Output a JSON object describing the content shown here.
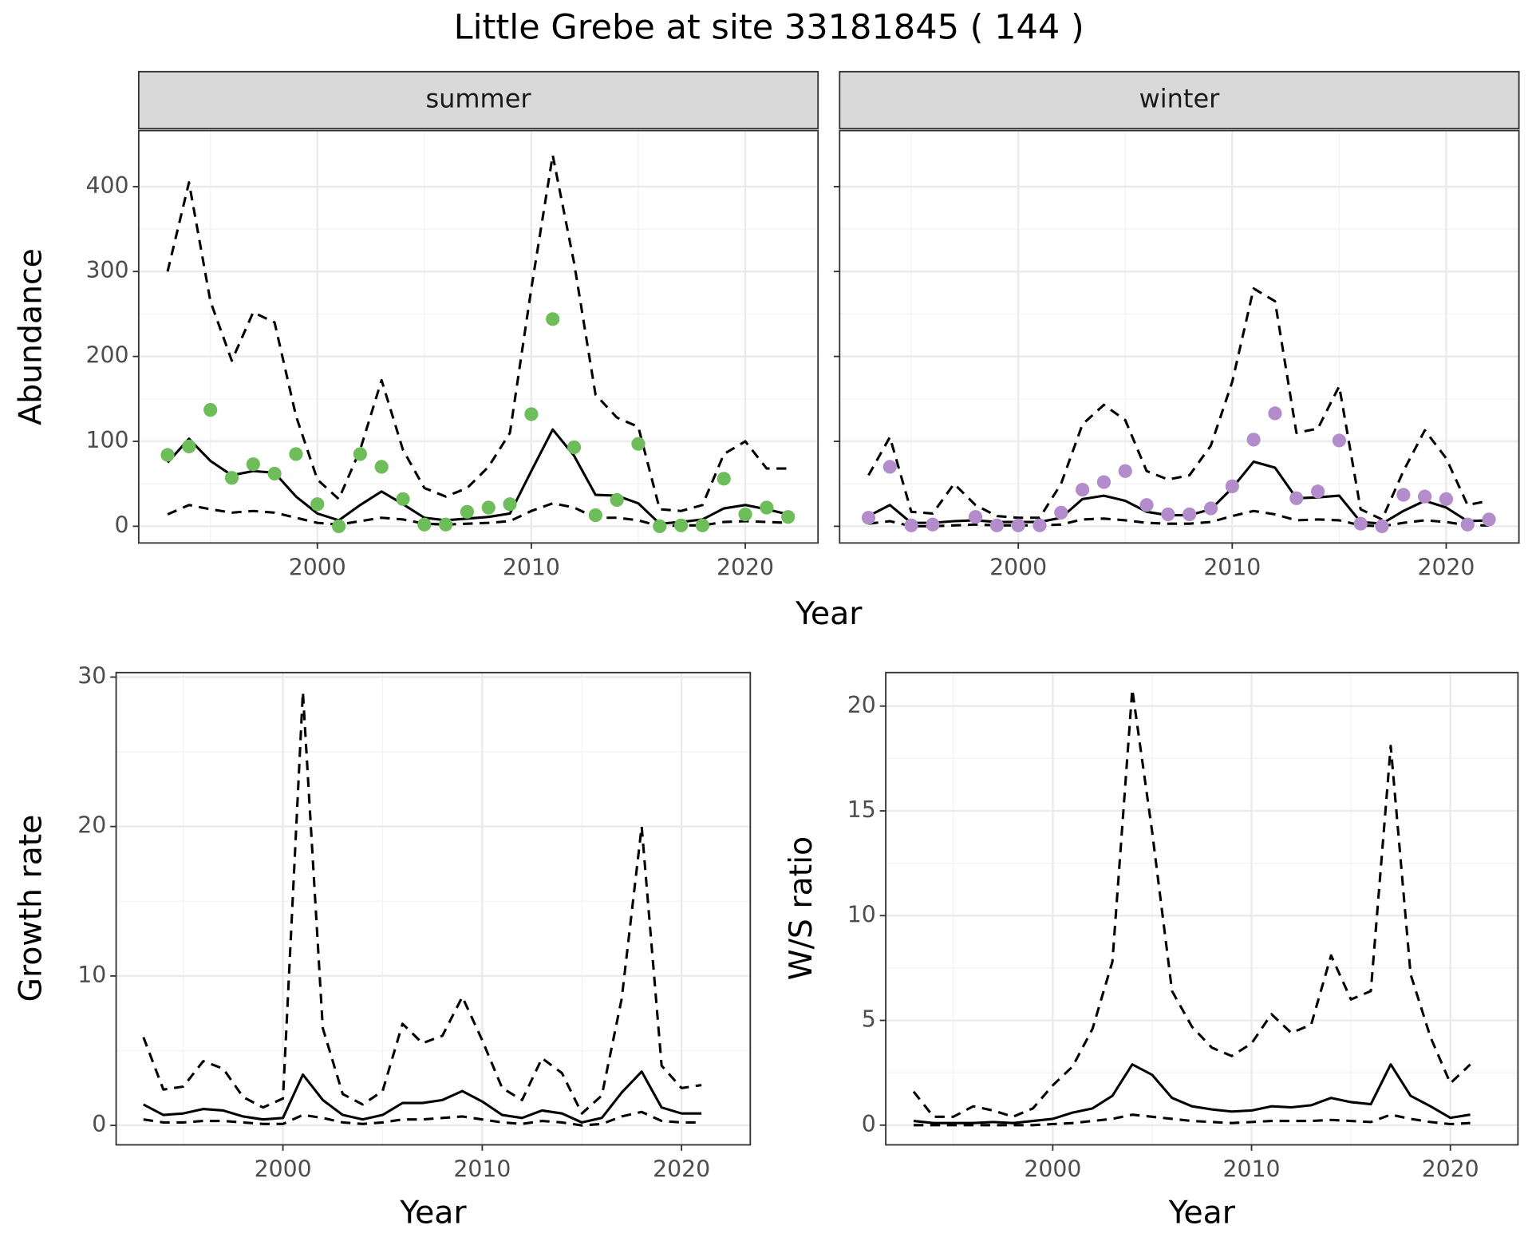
{
  "title": "Little Grebe at site 33181845 ( 144 )",
  "chart_data": [
    {
      "type": "line",
      "panel": "summer",
      "xlabel": "Year",
      "ylabel": "Abundance",
      "x": [
        1993,
        1994,
        1995,
        1996,
        1997,
        1998,
        1999,
        2000,
        2001,
        2002,
        2003,
        2004,
        2005,
        2006,
        2007,
        2008,
        2009,
        2010,
        2011,
        2012,
        2013,
        2014,
        2015,
        2016,
        2017,
        2018,
        2019,
        2020,
        2021,
        2022
      ],
      "xlim": [
        1991.65,
        2023.4
      ],
      "xticks": [
        2000,
        2010,
        2020
      ],
      "ylim": [
        -19.7,
        466
      ],
      "yticks": [
        0,
        100,
        200,
        300,
        400
      ],
      "ytick_labels": true,
      "grid": true,
      "series": [
        {
          "color": "#000000",
          "dash": true,
          "values": [
            300,
            405,
            265,
            195,
            252,
            240,
            130,
            55,
            32,
            90,
            172,
            90,
            45,
            35,
            45,
            70,
            110,
            280,
            437,
            310,
            155,
            128,
            117,
            20,
            18,
            25,
            85,
            100,
            68,
            68
          ]
        },
        {
          "color": "#000000",
          "dash": false,
          "values": [
            75,
            103,
            77,
            60,
            65,
            63,
            35,
            15,
            7,
            25,
            41,
            26,
            10,
            7,
            9,
            11,
            15,
            65,
            114,
            83,
            37,
            36,
            27,
            3,
            5,
            8,
            21,
            25,
            20,
            14
          ]
        },
        {
          "color": "#000000",
          "dash": true,
          "values": [
            14,
            25,
            20,
            16,
            18,
            16,
            10,
            4,
            2,
            6,
            10,
            8,
            3,
            2,
            3,
            4,
            6,
            18,
            27,
            22,
            10,
            10,
            7,
            0,
            1,
            1,
            5,
            6,
            5,
            4
          ]
        },
        {
          "color": "#6dbd5a",
          "marker": "point",
          "values": [
            84,
            94,
            137,
            57,
            73,
            62,
            85,
            26,
            0,
            85,
            70,
            32,
            2,
            2,
            17,
            22,
            26,
            132,
            244,
            93,
            13,
            31,
            97,
            0,
            1,
            1,
            56,
            14,
            22,
            11
          ]
        }
      ]
    },
    {
      "type": "line",
      "panel": "winter",
      "x": [
        1993,
        1994,
        1995,
        1996,
        1997,
        1998,
        1999,
        2000,
        2001,
        2002,
        2003,
        2004,
        2005,
        2006,
        2007,
        2008,
        2009,
        2010,
        2011,
        2012,
        2013,
        2014,
        2015,
        2016,
        2017,
        2018,
        2019,
        2020,
        2021,
        2022
      ],
      "xlim": [
        1991.65,
        2023.4
      ],
      "xticks": [
        2000,
        2010,
        2020
      ],
      "ylim": [
        -19.7,
        466
      ],
      "yticks": [
        0,
        100,
        200,
        300,
        400
      ],
      "ytick_labels": false,
      "grid": true,
      "series": [
        {
          "color": "#000000",
          "dash": true,
          "values": [
            60,
            105,
            17,
            15,
            50,
            25,
            12,
            10,
            10,
            50,
            120,
            143,
            125,
            65,
            55,
            60,
            95,
            170,
            280,
            265,
            110,
            115,
            165,
            20,
            8,
            65,
            113,
            80,
            25,
            30
          ]
        },
        {
          "color": "#000000",
          "dash": false,
          "values": [
            12,
            25,
            4,
            4,
            6,
            7,
            5,
            5,
            5,
            10,
            32,
            36,
            30,
            17,
            13,
            13,
            20,
            45,
            76,
            69,
            33,
            34,
            36,
            5,
            3,
            18,
            30,
            22,
            6,
            7
          ]
        },
        {
          "color": "#000000",
          "dash": true,
          "values": [
            3,
            6,
            0,
            0,
            1,
            2,
            1,
            1,
            1,
            2,
            8,
            9,
            7,
            4,
            3,
            3,
            5,
            12,
            18,
            14,
            7,
            8,
            7,
            1,
            0,
            4,
            7,
            5,
            1,
            1
          ]
        },
        {
          "color": "#b38ccc",
          "marker": "point",
          "values": [
            10,
            70,
            1,
            2,
            null,
            11,
            1,
            1,
            1,
            16,
            43,
            52,
            65,
            25,
            14,
            14,
            21,
            47,
            102,
            133,
            33,
            41,
            101,
            3,
            0,
            37,
            35,
            32,
            2,
            8
          ]
        }
      ]
    },
    {
      "type": "line",
      "xlabel": "Year",
      "ylabel": "Growth rate",
      "x": [
        1993,
        1994,
        1995,
        1996,
        1997,
        1998,
        1999,
        2000,
        2001,
        2002,
        2003,
        2004,
        2005,
        2006,
        2007,
        2008,
        2009,
        2010,
        2011,
        2012,
        2013,
        2014,
        2015,
        2016,
        2017,
        2018,
        2019,
        2020,
        2021
      ],
      "xlim": [
        1991.63,
        2023.45
      ],
      "xticks": [
        2000,
        2010,
        2020
      ],
      "ylim": [
        -1.3,
        30.3
      ],
      "yticks": [
        0,
        10,
        20,
        30
      ],
      "ytick_labels": true,
      "grid": true,
      "series": [
        {
          "color": "#000000",
          "dash": true,
          "values": [
            5.9,
            2.4,
            2.6,
            4.3,
            3.8,
            1.9,
            1.2,
            1.8,
            29,
            6.5,
            2.1,
            1.4,
            2.3,
            6.8,
            5.5,
            6.0,
            8.6,
            5.7,
            2.5,
            1.7,
            4.5,
            3.5,
            0.8,
            2.0,
            8.5,
            20.0,
            4.0,
            2.5,
            2.7
          ]
        },
        {
          "color": "#000000",
          "dash": false,
          "values": [
            1.4,
            0.7,
            0.8,
            1.1,
            1.0,
            0.6,
            0.4,
            0.5,
            3.4,
            1.7,
            0.7,
            0.4,
            0.7,
            1.5,
            1.5,
            1.7,
            2.3,
            1.6,
            0.7,
            0.5,
            1.0,
            0.8,
            0.2,
            0.5,
            2.2,
            3.6,
            1.2,
            0.8,
            0.8
          ]
        },
        {
          "color": "#000000",
          "dash": true,
          "values": [
            0.4,
            0.2,
            0.2,
            0.3,
            0.3,
            0.2,
            0.1,
            0.1,
            0.7,
            0.5,
            0.2,
            0.1,
            0.2,
            0.4,
            0.4,
            0.5,
            0.6,
            0.4,
            0.2,
            0.1,
            0.3,
            0.2,
            0.0,
            0.1,
            0.6,
            0.9,
            0.3,
            0.2,
            0.2
          ]
        }
      ]
    },
    {
      "type": "line",
      "xlabel": "Year",
      "ylabel": "W/S ratio",
      "x": [
        1993,
        1994,
        1995,
        1996,
        1997,
        1998,
        1999,
        2000,
        2001,
        2002,
        2003,
        2004,
        2005,
        2006,
        2007,
        2008,
        2009,
        2010,
        2011,
        2012,
        2013,
        2014,
        2015,
        2016,
        2017,
        2018,
        2019,
        2020,
        2021
      ],
      "xlim": [
        1991.6,
        2023.4
      ],
      "xticks": [
        2000,
        2010,
        2020
      ],
      "ylim": [
        -0.94,
        21.6
      ],
      "yticks": [
        0,
        5,
        10,
        15,
        20
      ],
      "ytick_labels": true,
      "grid": true,
      "series": [
        {
          "color": "#000000",
          "dash": true,
          "values": [
            1.6,
            0.4,
            0.4,
            0.9,
            0.7,
            0.4,
            0.8,
            1.9,
            2.8,
            4.6,
            7.8,
            20.8,
            14,
            6.4,
            4.7,
            3.7,
            3.3,
            3.9,
            5.3,
            4.4,
            4.8,
            8.1,
            6.0,
            6.4,
            18.1,
            7.2,
            4.2,
            2.0,
            2.9
          ]
        },
        {
          "color": "#000000",
          "dash": false,
          "values": [
            0.2,
            0.1,
            0.1,
            0.1,
            0.15,
            0.1,
            0.2,
            0.3,
            0.6,
            0.8,
            1.4,
            2.9,
            2.4,
            1.3,
            0.9,
            0.75,
            0.65,
            0.7,
            0.9,
            0.85,
            0.95,
            1.3,
            1.1,
            1.0,
            2.9,
            1.4,
            0.9,
            0.35,
            0.5
          ]
        },
        {
          "color": "#000000",
          "dash": true,
          "values": [
            0.0,
            0.0,
            0.0,
            0.0,
            0.0,
            0.0,
            0.0,
            0.05,
            0.1,
            0.2,
            0.3,
            0.5,
            0.4,
            0.3,
            0.2,
            0.15,
            0.1,
            0.15,
            0.2,
            0.2,
            0.2,
            0.25,
            0.2,
            0.15,
            0.5,
            0.3,
            0.15,
            0.05,
            0.1
          ]
        }
      ]
    }
  ]
}
